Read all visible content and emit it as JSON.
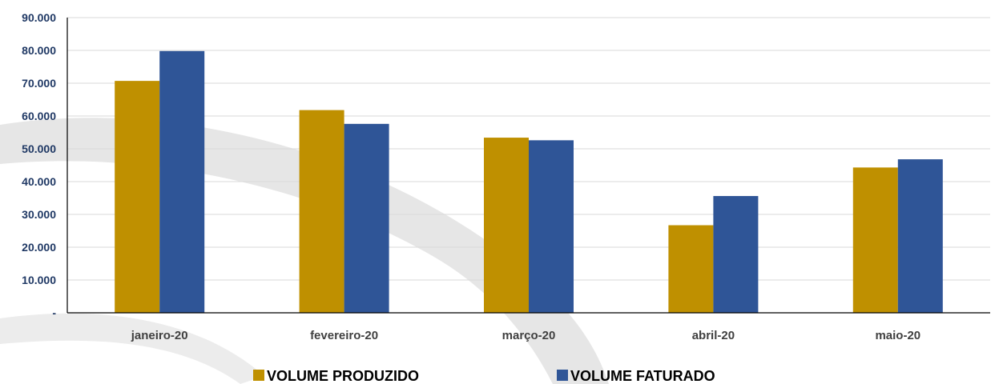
{
  "chart_data": {
    "type": "bar",
    "categories": [
      "janeiro-20",
      "fevereiro-20",
      "março-20",
      "abril-20",
      "maio-20"
    ],
    "series": [
      {
        "name": "VOLUME PRODUZIDO",
        "color": "#bf9000",
        "values": [
          70700,
          61800,
          53400,
          26700,
          44300
        ]
      },
      {
        "name": "VOLUME FATURADO",
        "color": "#2f5597",
        "values": [
          79800,
          57600,
          52600,
          35600,
          46800
        ]
      }
    ],
    "ylim": [
      0,
      90000
    ],
    "yticks": [
      0,
      10000,
      20000,
      30000,
      40000,
      50000,
      60000,
      70000,
      80000,
      90000
    ],
    "ytick_labels": [
      "-",
      "10.000",
      "20.000",
      "30.000",
      "40.000",
      "50.000",
      "60.000",
      "70.000",
      "80.000",
      "90.000"
    ],
    "grid": true,
    "legend": "bottom"
  }
}
